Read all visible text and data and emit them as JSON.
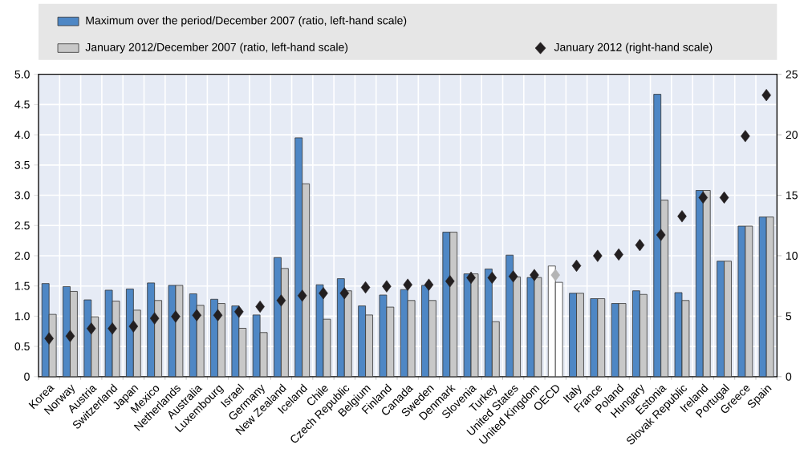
{
  "chart_data": {
    "type": "bar",
    "categories": [
      "Korea",
      "Norway",
      "Austria",
      "Switzerland",
      "Japan",
      "Mexico",
      "Netherlands",
      "Australia",
      "Luxembourg",
      "Israel",
      "Germany",
      "New Zealand",
      "Iceland",
      "Chile",
      "Czech Republic",
      "Belgium",
      "Finland",
      "Canada",
      "Sweden",
      "Denmark",
      "Slovenia",
      "Turkey",
      "United States",
      "United Kingdom",
      "OECD",
      "Italy",
      "France",
      "Poland",
      "Hungary",
      "Estonia",
      "Slovak Republic",
      "Ireland",
      "Portugal",
      "Greece",
      "Spain"
    ],
    "series": [
      {
        "name": "Maximum over the period/December 2007 (ratio, left-hand scale)",
        "color": "#4e87c5",
        "colors": [
          "#4e87c5",
          "#4e87c5",
          "#4e87c5",
          "#4e87c5",
          "#4e87c5",
          "#4e87c5",
          "#4e87c5",
          "#4e87c5",
          "#4e87c5",
          "#4e87c5",
          "#4e87c5",
          "#4e87c5",
          "#4e87c5",
          "#4e87c5",
          "#4e87c5",
          "#4e87c5",
          "#4e87c5",
          "#4e87c5",
          "#4e87c5",
          "#4e87c5",
          "#4e87c5",
          "#4e87c5",
          "#4e87c5",
          "#4e87c5",
          "#ffffff",
          "#4e87c5",
          "#4e87c5",
          "#4e87c5",
          "#4e87c5",
          "#4e87c5",
          "#4e87c5",
          "#4e87c5",
          "#4e87c5",
          "#4e87c5",
          "#4e87c5"
        ],
        "values": [
          1.54,
          1.49,
          1.27,
          1.43,
          1.45,
          1.55,
          1.51,
          1.37,
          1.28,
          1.17,
          1.02,
          1.97,
          3.95,
          1.52,
          1.62,
          1.17,
          1.35,
          1.44,
          1.51,
          2.39,
          1.7,
          1.78,
          2.01,
          1.64,
          1.83,
          1.38,
          1.29,
          1.21,
          1.42,
          4.67,
          1.39,
          3.08,
          1.91,
          2.49,
          2.64
        ]
      },
      {
        "name": "January 2012/December 2007 (ratio, left-hand scale)",
        "color": "#c8c8c8",
        "colors": [
          "#c8c8c8",
          "#c8c8c8",
          "#c8c8c8",
          "#c8c8c8",
          "#c8c8c8",
          "#c8c8c8",
          "#c8c8c8",
          "#c8c8c8",
          "#c8c8c8",
          "#c8c8c8",
          "#c8c8c8",
          "#c8c8c8",
          "#c8c8c8",
          "#c8c8c8",
          "#c8c8c8",
          "#c8c8c8",
          "#c8c8c8",
          "#c8c8c8",
          "#c8c8c8",
          "#c8c8c8",
          "#c8c8c8",
          "#c8c8c8",
          "#c8c8c8",
          "#c8c8c8",
          "#ffffff",
          "#c8c8c8",
          "#c8c8c8",
          "#c8c8c8",
          "#c8c8c8",
          "#c8c8c8",
          "#c8c8c8",
          "#c8c8c8",
          "#c8c8c8",
          "#c8c8c8",
          "#c8c8c8"
        ],
        "values": [
          1.03,
          1.41,
          0.99,
          1.25,
          1.1,
          1.26,
          1.51,
          1.18,
          1.21,
          0.8,
          0.73,
          1.79,
          3.19,
          0.95,
          1.42,
          1.02,
          1.15,
          1.26,
          1.26,
          2.39,
          1.7,
          0.91,
          1.65,
          1.64,
          1.56,
          1.38,
          1.29,
          1.21,
          1.36,
          2.92,
          1.26,
          3.08,
          1.91,
          2.49,
          2.64
        ]
      },
      {
        "name": "January 2012 (right-hand scale)",
        "type": "scatter",
        "axis": "y2",
        "marker": "diamond",
        "color": "#231f20",
        "colors": [
          "#231f20",
          "#231f20",
          "#231f20",
          "#231f20",
          "#231f20",
          "#231f20",
          "#231f20",
          "#231f20",
          "#231f20",
          "#231f20",
          "#231f20",
          "#231f20",
          "#231f20",
          "#231f20",
          "#231f20",
          "#231f20",
          "#231f20",
          "#231f20",
          "#231f20",
          "#231f20",
          "#231f20",
          "#231f20",
          "#231f20",
          "#231f20",
          "#b4b4b4",
          "#231f20",
          "#231f20",
          "#231f20",
          "#231f20",
          "#231f20",
          "#231f20",
          "#231f20",
          "#231f20",
          "#231f20",
          "#231f20"
        ],
        "values": [
          3.16,
          3.36,
          3.98,
          3.98,
          4.16,
          4.82,
          4.97,
          5.08,
          5.08,
          5.37,
          5.79,
          6.3,
          6.7,
          6.9,
          6.9,
          7.38,
          7.47,
          7.6,
          7.6,
          7.89,
          8.18,
          8.18,
          8.29,
          8.4,
          8.4,
          9.17,
          9.99,
          10.1,
          10.88,
          11.72,
          13.26,
          14.81,
          14.81,
          19.89,
          23.28
        ]
      }
    ],
    "ylim": [
      0,
      5
    ],
    "yticks": [
      0,
      0.5,
      {
        "value": 1,
        "label": "1.0"
      },
      1.5,
      {
        "value": 2,
        "label": "2.0"
      },
      2.5,
      {
        "value": 3,
        "label": "3.0"
      },
      3.5,
      {
        "value": 4,
        "label": "4.0"
      },
      4.5,
      {
        "value": 5,
        "label": "5.0"
      }
    ],
    "y2lim": [
      0,
      25
    ],
    "y2ticks": [
      0,
      5,
      10,
      15,
      20,
      25
    ],
    "grid": true,
    "legend": "top"
  }
}
